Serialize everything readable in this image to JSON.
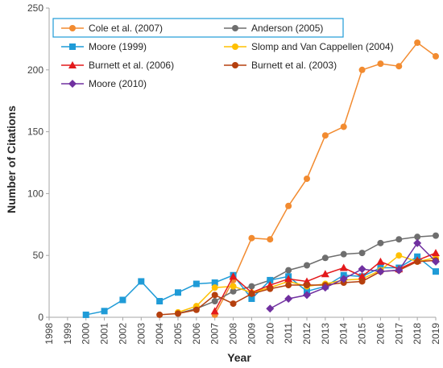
{
  "chart_data": {
    "type": "line",
    "title": "",
    "xlabel": "Year",
    "ylabel": "Number of Citations",
    "categories": [
      "1998",
      "1999",
      "2000",
      "2001",
      "2002",
      "2003",
      "2004",
      "2005",
      "2006",
      "2007",
      "2008",
      "2009",
      "2010",
      "2011",
      "2012",
      "2013",
      "2014",
      "2015",
      "2016",
      "2017",
      "2018",
      "2019"
    ],
    "ylim": [
      0,
      250
    ],
    "yticks": [
      "0",
      "50",
      "100",
      "150",
      "200",
      "250"
    ],
    "grid": false,
    "legend_position": "top",
    "series": [
      {
        "name": "Cole et al. (2007)",
        "color": "#f28b30",
        "marker": "circle",
        "values": [
          null,
          null,
          null,
          null,
          null,
          null,
          null,
          null,
          null,
          2,
          30,
          64,
          63,
          90,
          112,
          147,
          154,
          200,
          205,
          203,
          222,
          211
        ]
      },
      {
        "name": "Anderson (2005)",
        "color": "#6e6e6e",
        "marker": "circle",
        "values": [
          null,
          null,
          null,
          null,
          null,
          null,
          null,
          3,
          7,
          13,
          21,
          25,
          30,
          38,
          42,
          48,
          51,
          52,
          60,
          63,
          65,
          66
        ]
      },
      {
        "name": "Moore (1999)",
        "color": "#1f9bd7",
        "marker": "square",
        "values": [
          null,
          null,
          2,
          5,
          14,
          29,
          13,
          20,
          27,
          28,
          34,
          15,
          30,
          33,
          21,
          25,
          34,
          33,
          40,
          40,
          49,
          37
        ]
      },
      {
        "name": "Slomp and Van Cappellen (2004)",
        "color": "#ffc000",
        "marker": "circle",
        "values": [
          null,
          null,
          null,
          null,
          null,
          null,
          null,
          4,
          9,
          24,
          25,
          20,
          24,
          29,
          25,
          27,
          30,
          31,
          38,
          50,
          45,
          48
        ]
      },
      {
        "name": "Burnett et al. (2006)",
        "color": "#e31a1c",
        "marker": "triangle",
        "values": [
          null,
          null,
          null,
          null,
          null,
          null,
          null,
          null,
          null,
          5,
          33,
          20,
          26,
          31,
          29,
          35,
          40,
          33,
          45,
          39,
          46,
          52
        ]
      },
      {
        "name": "Burnett et al. (2003)",
        "color": "#b5400e",
        "marker": "circle",
        "values": [
          null,
          null,
          null,
          null,
          null,
          null,
          2,
          3,
          6,
          18,
          11,
          19,
          23,
          26,
          26,
          26,
          28,
          29,
          37,
          38,
          45,
          46
        ]
      },
      {
        "name": "Moore (2010)",
        "color": "#7030a0",
        "marker": "diamond",
        "values": [
          null,
          null,
          null,
          null,
          null,
          null,
          null,
          null,
          null,
          null,
          null,
          null,
          7,
          15,
          18,
          24,
          31,
          39,
          37,
          38,
          60,
          45
        ]
      }
    ]
  }
}
